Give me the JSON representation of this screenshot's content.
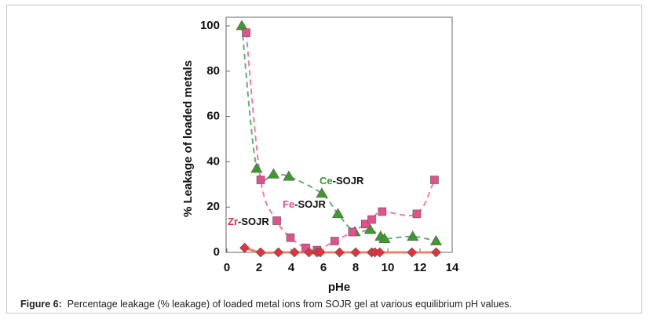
{
  "chart_data": {
    "type": "scatter",
    "xlabel": "pHe",
    "ylabel": "% Leakage of loaded metals",
    "xlim": [
      0,
      14
    ],
    "xticks": [
      0,
      2,
      4,
      6,
      8,
      10,
      12,
      14
    ],
    "ylim": [
      0,
      100
    ],
    "yticks": [
      0,
      20,
      40,
      60,
      80,
      100
    ],
    "series": [
      {
        "name": "Ce-SOJR",
        "color": "#3f9a2e",
        "marker": "triangle",
        "line_color": "#5fb074",
        "x": [
          0.93,
          1.85,
          2.9,
          3.85,
          5.9,
          6.9,
          7.95,
          8.9,
          9.55,
          9.8,
          11.55,
          13.0
        ],
        "values": [
          100,
          37,
          34.5,
          33.5,
          26,
          17,
          9,
          10,
          7,
          6,
          7,
          5
        ]
      },
      {
        "name": "Fe-SOJR",
        "color": "#e5508c",
        "marker": "square",
        "line_color": "#f07aaa",
        "x": [
          1.2,
          2.1,
          3.1,
          3.95,
          4.9,
          5.6,
          6.7,
          7.8,
          8.6,
          9.0,
          9.65,
          11.8,
          12.9
        ],
        "values": [
          97,
          32,
          14,
          6.5,
          2,
          1,
          5,
          9,
          12.5,
          14.5,
          18,
          17,
          32
        ]
      },
      {
        "name": "Zr-SOJR",
        "color": "#e8303a",
        "marker": "diamond",
        "line_color": "#f08070",
        "x": [
          1.1,
          2.1,
          3.2,
          4.2,
          5.1,
          5.6,
          5.8,
          7.0,
          8.0,
          9.0,
          9.2,
          9.5,
          11.5,
          13.0
        ],
        "values": [
          2,
          0,
          0,
          0,
          0,
          0,
          0,
          0,
          0,
          0,
          0,
          0,
          0,
          0
        ]
      }
    ]
  },
  "caption": {
    "label": "Figure 6:",
    "text": "Percentage leakage (% leakage) of loaded metal ions from SOJR gel at various equilibrium pH values."
  }
}
